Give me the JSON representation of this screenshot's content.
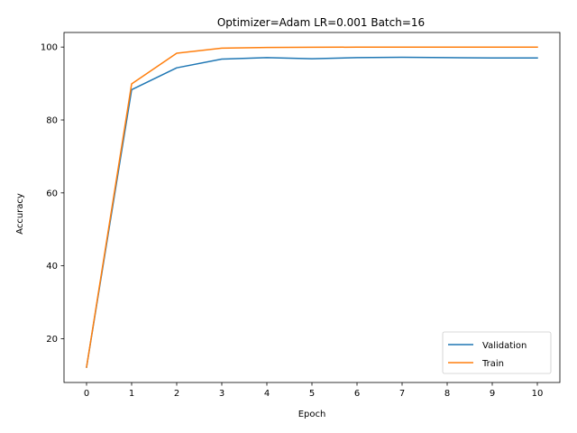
{
  "chart_data": {
    "type": "line",
    "title": "Optimizer=Adam LR=0.001 Batch=16",
    "xlabel": "Epoch",
    "ylabel": "Accuracy",
    "x": [
      0,
      1,
      2,
      3,
      4,
      5,
      6,
      7,
      8,
      9,
      10
    ],
    "xticks": [
      0,
      1,
      2,
      3,
      4,
      5,
      6,
      7,
      8,
      9,
      10
    ],
    "yticks": [
      20,
      40,
      60,
      80,
      100
    ],
    "xlim": [
      -0.5,
      10.5
    ],
    "ylim": [
      8,
      104
    ],
    "grid": false,
    "legend_position": "lower-right",
    "series": [
      {
        "name": "Validation",
        "color": "#1f77b4",
        "values": [
          12.2,
          88.3,
          94.3,
          96.7,
          97.1,
          96.8,
          97.1,
          97.2,
          97.1,
          97.0,
          97.0
        ]
      },
      {
        "name": "Train",
        "color": "#ff7f0e",
        "values": [
          12.2,
          89.9,
          98.3,
          99.7,
          99.9,
          99.95,
          99.97,
          99.98,
          99.98,
          99.98,
          99.98
        ]
      }
    ]
  }
}
